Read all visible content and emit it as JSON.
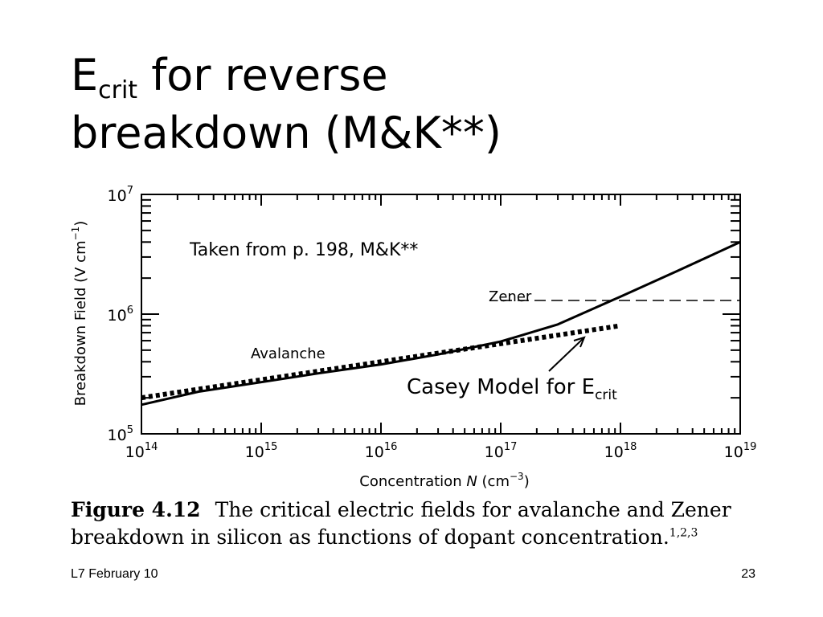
{
  "slide": {
    "title_main": "E",
    "title_sub": "crit",
    "title_rest": " for reverse",
    "title_line2": "breakdown (M&K**)",
    "footer_left": "L7 February 10",
    "page_number": "23"
  },
  "caption": {
    "figure_label": "Figure 4.12",
    "text": "The critical electric fields for avalanche and Zener breakdown in silicon as functions of dopant concentration.",
    "refs": "1,2,3"
  },
  "chart_data": {
    "type": "line",
    "x_scale": "log",
    "y_scale": "log",
    "xlim": [
      100000000000000.0,
      1e+19
    ],
    "ylim": [
      100000.0,
      10000000.0
    ],
    "x_ticks": [
      {
        "base": "10",
        "exp": "14"
      },
      {
        "base": "10",
        "exp": "15"
      },
      {
        "base": "10",
        "exp": "16"
      },
      {
        "base": "10",
        "exp": "17"
      },
      {
        "base": "10",
        "exp": "18"
      },
      {
        "base": "10",
        "exp": "19"
      }
    ],
    "y_ticks": [
      {
        "base": "10",
        "exp": "5"
      },
      {
        "base": "10",
        "exp": "6"
      },
      {
        "base": "10",
        "exp": "7"
      }
    ],
    "xlabel": {
      "prefix": "Concentration ",
      "var": "N",
      "mid": " (cm",
      "exp": "−3",
      "suffix": ")"
    },
    "ylabel": {
      "prefix": "Breakdown Field (V cm",
      "exp": "−1",
      "suffix": ")"
    },
    "series": [
      {
        "name": "Avalanche",
        "style": "solid",
        "color": "#000000",
        "x": [
          100000000000000.0,
          300000000000000.0,
          1000000000000000.0,
          3000000000000000.0,
          1e+16,
          3e+16,
          1e+17,
          3e+17,
          1e+18,
          3e+18,
          1e+19
        ],
        "y": [
          175000,
          225000,
          270000,
          320000,
          380000,
          460000,
          590000,
          820000,
          1400000,
          2300000,
          4000000
        ]
      },
      {
        "name": "Zener",
        "style": "dashed",
        "color": "#000000",
        "x": [
          1e+17,
          1e+19
        ],
        "y": [
          1300000,
          1300000
        ]
      },
      {
        "name": "Casey Model for E",
        "name_sub": "crit",
        "style": "dotted",
        "color": "#000000",
        "x": [
          100000000000000.0,
          1e+18
        ],
        "y": [
          200000,
          800000
        ]
      }
    ],
    "annotations": {
      "source_note": "Taken from p. 198, M&K**"
    }
  }
}
